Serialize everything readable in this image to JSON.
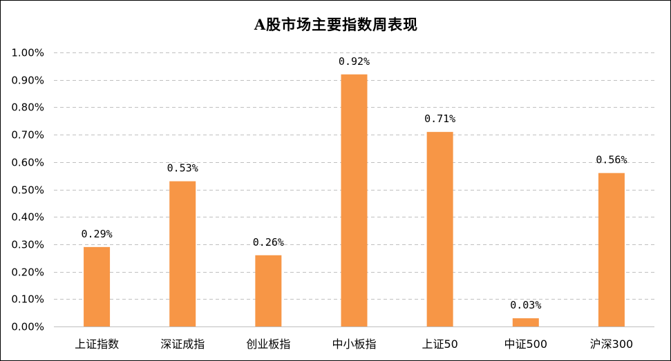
{
  "chart_data": {
    "type": "bar",
    "title": "A股市场主要指数周表现",
    "categories": [
      "上证指数",
      "深证成指",
      "创业板指",
      "中小板指",
      "上证50",
      "中证500",
      "沪深300"
    ],
    "values": [
      0.29,
      0.53,
      0.26,
      0.92,
      0.71,
      0.03,
      0.56
    ],
    "value_labels": [
      "0.29%",
      "0.53%",
      "0.26%",
      "0.92%",
      "0.71%",
      "0.03%",
      "0.56%"
    ],
    "yticks": [
      "0.00%",
      "0.10%",
      "0.20%",
      "0.30%",
      "0.40%",
      "0.50%",
      "0.60%",
      "0.70%",
      "0.80%",
      "0.90%",
      "1.00%"
    ],
    "ylim": [
      0,
      1.0
    ],
    "ytick_step": 0.1,
    "xlabel": "",
    "ylabel": "",
    "grid": true,
    "legend": "none",
    "bar_color": "#F79646",
    "grid_color": "#BFBFBF"
  }
}
